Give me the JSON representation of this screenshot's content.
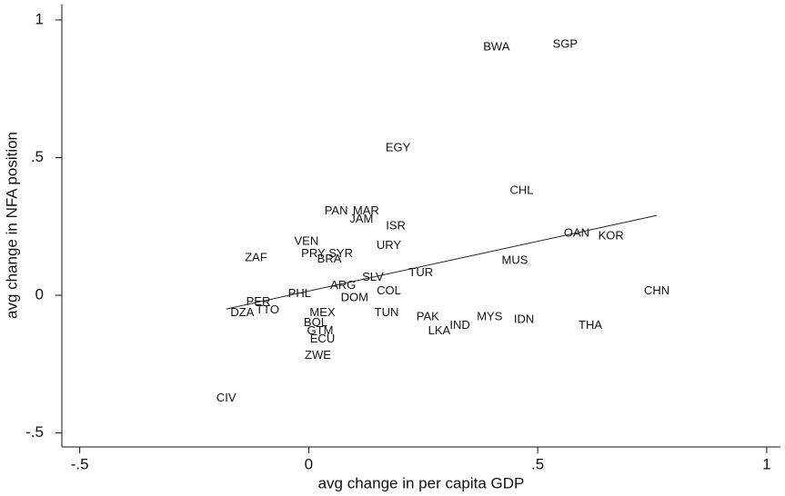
{
  "chart_data": {
    "type": "scatter",
    "x_label": "avg change in per capita GDP",
    "y_label": "avg change in NFA position",
    "xlim": [
      -0.539,
      1.03
    ],
    "ylim": [
      -0.551,
      1.056
    ],
    "xticks": [
      {
        "value": -0.5,
        "label": "-.5"
      },
      0,
      {
        "value": 0.5,
        "label": ".5"
      },
      1
    ],
    "yticks": [
      {
        "value": -0.5,
        "label": "-.5"
      },
      0,
      {
        "value": 0.5,
        "label": ".5"
      },
      1
    ],
    "color": "#111111",
    "labels": [
      "BWA",
      "SGP",
      "EGY",
      "CHL",
      "PAN",
      "MAR",
      "JAM",
      "ISR",
      "VEN",
      "URY",
      "ZAF",
      "PRY",
      "SYR",
      "BRA",
      "OAN",
      "KOR",
      "MUS",
      "TUR",
      "SLV",
      "ARG",
      "PHL",
      "DOM",
      "COL",
      "CHN",
      "PER",
      "DZA",
      "TTO",
      "MEX",
      "TUN",
      "PAK",
      "MYS",
      "IDN",
      "IND",
      "LKA",
      "THA",
      "BOL",
      "GTM",
      "ECU",
      "ZWE",
      "CIV"
    ],
    "x": [
      0.41,
      0.56,
      0.195,
      0.465,
      0.06,
      0.125,
      0.115,
      0.19,
      -0.005,
      0.175,
      -0.115,
      0.01,
      0.07,
      0.045,
      0.585,
      0.66,
      0.45,
      0.245,
      0.14,
      0.075,
      -0.02,
      0.1,
      0.175,
      0.76,
      -0.11,
      -0.145,
      -0.09,
      0.03,
      0.17,
      0.26,
      0.395,
      0.47,
      0.33,
      0.285,
      0.615,
      0.015,
      0.025,
      0.03,
      0.02,
      -0.18
    ],
    "y": [
      0.9,
      0.91,
      0.535,
      0.38,
      0.305,
      0.305,
      0.275,
      0.25,
      0.195,
      0.18,
      0.135,
      0.15,
      0.15,
      0.13,
      0.225,
      0.215,
      0.125,
      0.08,
      0.065,
      0.035,
      0.005,
      -0.01,
      0.015,
      0.015,
      -0.025,
      -0.065,
      -0.055,
      -0.065,
      -0.065,
      -0.08,
      -0.08,
      -0.09,
      -0.11,
      -0.13,
      -0.11,
      -0.1,
      -0.13,
      -0.16,
      -0.22,
      -0.375
    ],
    "fit_line": {
      "x": [
        -0.18,
        0.76
      ],
      "y": [
        -0.05,
        0.29
      ]
    }
  }
}
